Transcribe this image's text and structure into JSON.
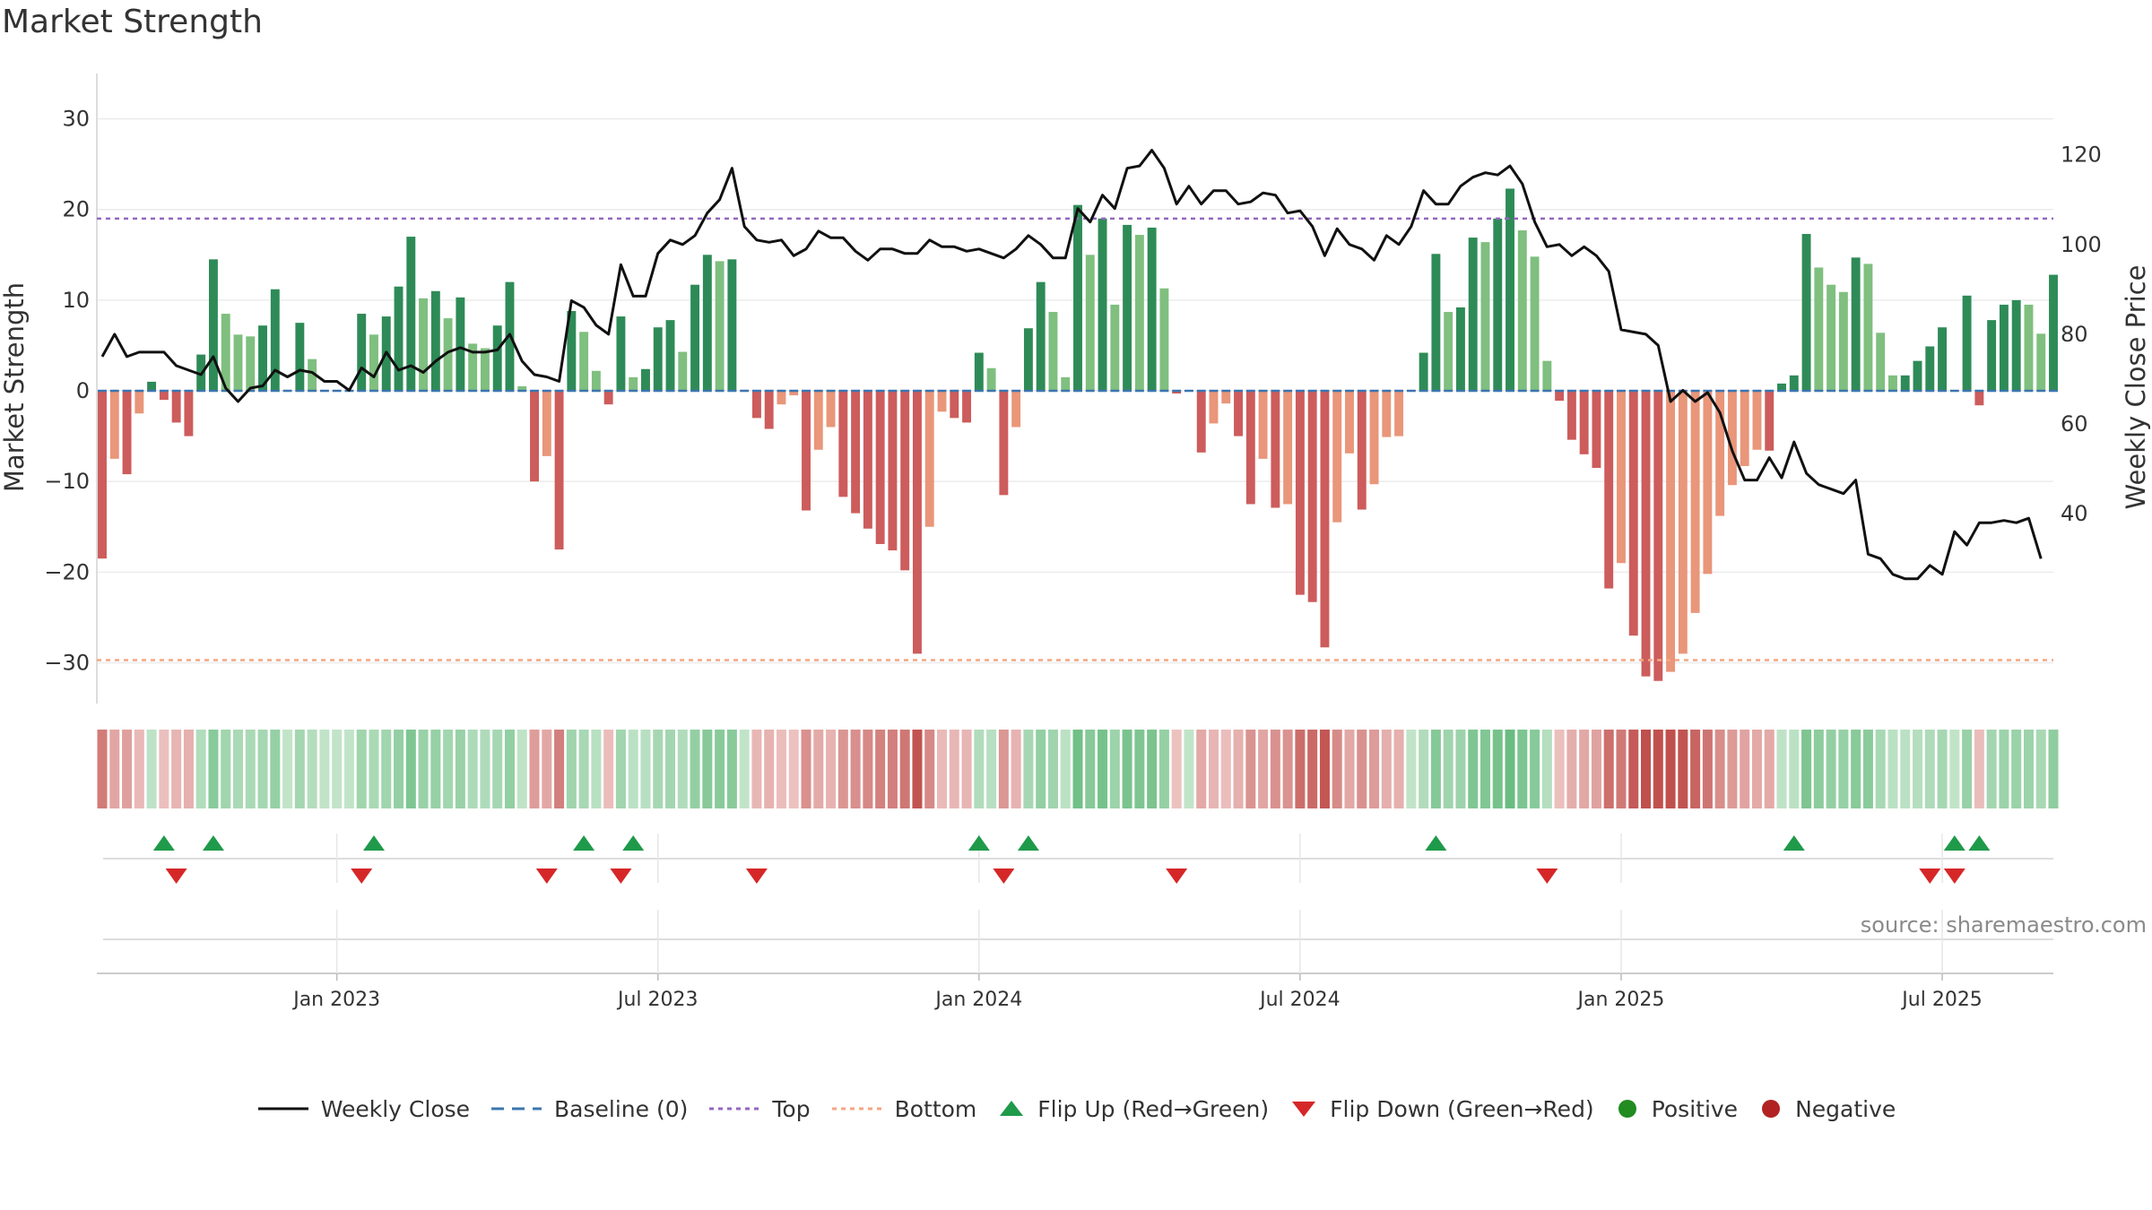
{
  "title": "Market Strength",
  "source": "source: sharemaestro.com",
  "colors": {
    "pos_strong": "#2e8b57",
    "pos_light": "#7fbf7f",
    "neg_strong": "#cd5c5c",
    "neg_light": "#e9967a",
    "close": "#111111",
    "baseline": "#3b75af",
    "top": "#9467bd",
    "bottom": "#f4a582",
    "flip_up": "#1f9a4a",
    "flip_down": "#d62728",
    "positive": "#228b22",
    "negative": "#b22222"
  },
  "chart_data": {
    "type": "bar",
    "title": "Market Strength",
    "ylabel": "Market Strength",
    "y2label": "Weekly Close Price",
    "ylim": [
      -34.5,
      35
    ],
    "y2lim": [
      -2.3,
      138.1
    ],
    "yticks": [
      30,
      20,
      10,
      0,
      -10,
      -20,
      -30
    ],
    "ytick_labels": [
      "30",
      "20",
      "10",
      "0",
      "−10",
      "−20",
      "−30"
    ],
    "y2ticks": [
      120,
      100,
      80,
      60,
      40
    ],
    "y2tick_labels": [
      "120",
      "100",
      "80",
      "60",
      "40"
    ],
    "x_start": 0,
    "x_labels": [
      {
        "week": 19,
        "label": "Jan 2023"
      },
      {
        "week": 45,
        "label": "Jul 2023"
      },
      {
        "week": 71,
        "label": "Jan 2024"
      },
      {
        "week": 97,
        "label": "Jul 2024"
      },
      {
        "week": 123,
        "label": "Jan 2025"
      },
      {
        "week": 149,
        "label": "Jul 2025"
      }
    ],
    "top_level": 19,
    "bottom_level": -29.7,
    "strength": [
      -18.5,
      -7.5,
      -9.2,
      -2.5,
      1,
      -1,
      -3.5,
      -5,
      4,
      14.5,
      8.5,
      6.2,
      6,
      7.2,
      11.2,
      0,
      7.5,
      3.5,
      0,
      0,
      0,
      8.5,
      6.2,
      8.2,
      11.5,
      17,
      10.2,
      11,
      8,
      10.3,
      5.2,
      4.7,
      7.2,
      12,
      0.5,
      -10,
      -7.2,
      -17.5,
      8.8,
      6.5,
      2.2,
      -1.5,
      8.2,
      1.5,
      2.4,
      7,
      7.8,
      4.3,
      11.7,
      15,
      14.3,
      14.5,
      0,
      -3,
      -4.2,
      -1.5,
      -0.5,
      -13.2,
      -6.5,
      -4,
      -11.7,
      -13.5,
      -15.2,
      -16.9,
      -17.6,
      -19.8,
      -29,
      -15,
      -2.3,
      -3,
      -3.5,
      4.2,
      2.5,
      -11.5,
      -4,
      6.9,
      12,
      8.7,
      1.5,
      20.5,
      15,
      19,
      9.5,
      18.3,
      17.2,
      18,
      11.3,
      -0.3,
      0,
      -6.8,
      -3.6,
      -1.4,
      -5,
      -12.5,
      -7.5,
      -12.9,
      -12.5,
      -22.5,
      -23.3,
      -28.3,
      -14.5,
      -6.9,
      -13.1,
      -10.3,
      -5.1,
      -5,
      0,
      4.2,
      15.1,
      8.7,
      9.2,
      16.9,
      16.4,
      19,
      22.3,
      17.7,
      14.8,
      3.3,
      -1.1,
      -5.4,
      -7,
      -8.5,
      -21.8,
      -19,
      -27,
      -31.5,
      -32,
      -31,
      -29,
      -24.5,
      -20.2,
      -13.8,
      -10.4,
      -8.3,
      -6.5,
      -6.6,
      0.8,
      1.7,
      17.3,
      13.6,
      11.7,
      10.9,
      14.7,
      14,
      6.4,
      1.7,
      1.7,
      3.3,
      4.9,
      7,
      0,
      10.5,
      -1.6,
      7.8,
      9.5,
      10,
      9.5,
      6.3,
      12.8
    ],
    "close": [
      75,
      80,
      75,
      76,
      76,
      76,
      73,
      72,
      71,
      75,
      68,
      65,
      68,
      68.5,
      72,
      70.5,
      72,
      71.5,
      69.5,
      69.5,
      67.5,
      72.5,
      70.5,
      76,
      72,
      73,
      71.5,
      74,
      76,
      77,
      76,
      76,
      76.5,
      80,
      74,
      71,
      70.5,
      69.5,
      87.5,
      86,
      82,
      80,
      95.5,
      88.5,
      88.5,
      98,
      101,
      100,
      102,
      107,
      110,
      117,
      104,
      101,
      100.5,
      101,
      97.5,
      99,
      103,
      101.5,
      101.5,
      98.5,
      96.5,
      99,
      99,
      98,
      98,
      101,
      99.5,
      99.5,
      98.5,
      99,
      98,
      97,
      99,
      102,
      100,
      97,
      97,
      108,
      105,
      111,
      108,
      117,
      117.5,
      121,
      117,
      109,
      113,
      109,
      112,
      112,
      109,
      109.5,
      111.5,
      111,
      107,
      107.5,
      104,
      97.5,
      103.5,
      100,
      99,
      96.5,
      102,
      100,
      104,
      112,
      109,
      109,
      113,
      115,
      116,
      115.5,
      117.5,
      113.5,
      105,
      99.5,
      100,
      97.5,
      99.5,
      97.5,
      94,
      81,
      80.5,
      80,
      77.5,
      65,
      67.5,
      65,
      67,
      62.5,
      54,
      47.5,
      47.5,
      52.5,
      48,
      56,
      49,
      46.5,
      45.5,
      44.5,
      47.5,
      31,
      30,
      26.5,
      25.5,
      25.5,
      28.5,
      26.5,
      36,
      33,
      38,
      38,
      38.5,
      38,
      39,
      30
    ],
    "flips_up": [
      5,
      9,
      22,
      39,
      43,
      71,
      75,
      108,
      137,
      150,
      152
    ],
    "flips_down": [
      6,
      21,
      36,
      42,
      53,
      73,
      87,
      117,
      148,
      150
    ]
  }
}
